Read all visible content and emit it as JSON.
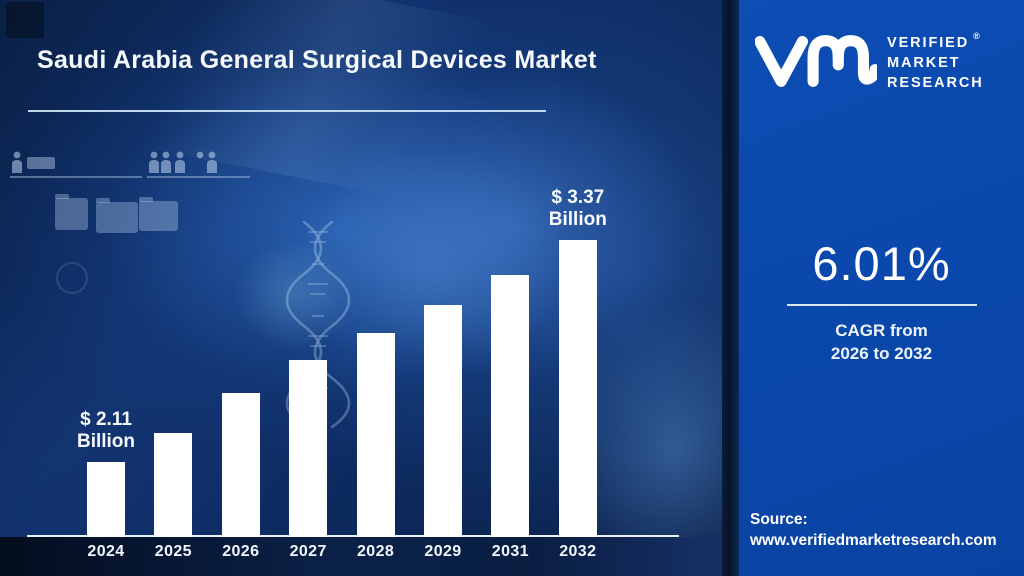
{
  "title": "Saudi Arabia General Surgical Devices Market",
  "logo": {
    "lines": [
      "VERIFIED",
      "MARKET",
      "RESEARCH"
    ],
    "registered": "®"
  },
  "stat_panel": {
    "cagr_value": "6.01%",
    "caption_line1": "CAGR from",
    "caption_line2": "2026 to 2032",
    "source_label": "Source:",
    "source_url": "www.verifiedmarketresearch.com"
  },
  "chart_data": {
    "type": "bar",
    "title": "Saudi Arabia General Surgical Devices Market",
    "unit": "USD Billion",
    "categories": [
      "2024",
      "2025",
      "2026",
      "2027",
      "2028",
      "2029",
      "2031",
      "2032"
    ],
    "values": [
      2.11,
      2.27,
      2.5,
      2.69,
      2.84,
      3.0,
      3.17,
      3.37
    ],
    "labeled_points": {
      "2024": "$ 2.11 Billion",
      "2032": "$ 3.37 Billion"
    },
    "bar_labels": [
      [
        "$ 2.11",
        "Billion"
      ],
      null,
      null,
      null,
      null,
      null,
      null,
      [
        "$ 3.37",
        "Billion"
      ]
    ],
    "bar_color": "#ffffff",
    "axis_color": "#e9f0f8",
    "ylim": [
      1.68,
      3.6
    ],
    "grid": false,
    "legend": false,
    "xlabel": "",
    "ylabel": ""
  },
  "colors": {
    "panel_blue": "#0a47ab",
    "background_navy": "#0d2a5f",
    "underline_light": "#c9e2f2"
  },
  "background_motifs": [
    "hand-holding-dna-photo",
    "dna-helix-icon",
    "people-icons",
    "folder-icons",
    "shelf-line"
  ]
}
